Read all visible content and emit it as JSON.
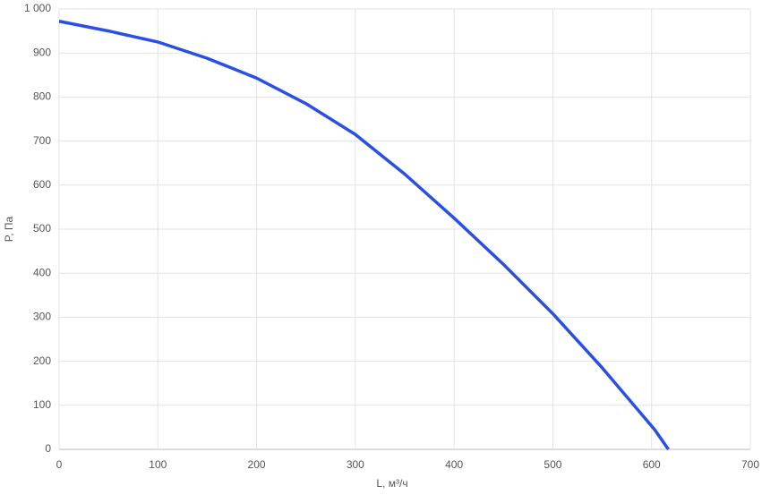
{
  "chart_data": {
    "type": "line",
    "x_label": "L, м³/ч",
    "y_label": "P, Па",
    "x": [
      0,
      50,
      100,
      150,
      200,
      250,
      300,
      350,
      400,
      450,
      500,
      550,
      603,
      617
    ],
    "series": [
      {
        "color": "#2a4fe3",
        "values": [
          972,
          950,
          925,
          888,
          843,
          785,
          715,
          625,
          525,
          420,
          308,
          185,
          45,
          0
        ]
      }
    ],
    "xlim": [
      0,
      700
    ],
    "xticks": [
      0,
      100,
      200,
      300,
      400,
      500,
      600,
      700
    ],
    "ylim": [
      0,
      1000
    ],
    "yticks": [
      0,
      100,
      200,
      300,
      400,
      500,
      600,
      700,
      800,
      900,
      {
        "value": 1000,
        "label": "1 000"
      }
    ],
    "grid": true
  }
}
